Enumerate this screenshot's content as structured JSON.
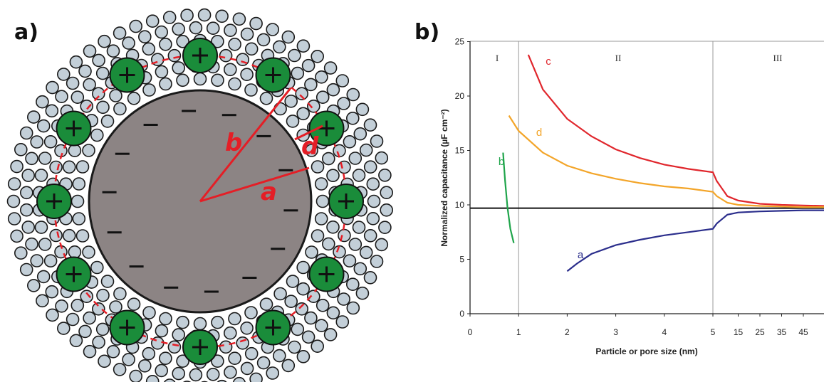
{
  "panels": {
    "a": "a)",
    "b": "b)"
  },
  "diagram": {
    "dimension_labels": {
      "a": "a",
      "b": "b",
      "d": "d"
    },
    "colors": {
      "core": "#8c8484",
      "cation": "#1a8c3a",
      "solvent": "#c3cfd8",
      "dimension": "#e41e26"
    }
  },
  "chart_data": {
    "type": "line",
    "xlabel": "Particle or pore size (nm)",
    "ylabel": "Normalized capacitance (µF cm⁻²)",
    "x_ticks": [
      "0",
      "1",
      "2",
      "3",
      "4",
      "5",
      "15",
      "25",
      "35",
      "45"
    ],
    "y_ticks": [
      "0",
      "5",
      "10",
      "15",
      "20",
      "25"
    ],
    "ylim": [
      0,
      25
    ],
    "x_scale": "piecewise: linear 0–5 nm, then compressed 5–45+ nm",
    "regions": [
      "I",
      "II",
      "III"
    ],
    "region_boundaries_nm": [
      1,
      5
    ],
    "reference_line_y": 9.7,
    "series": [
      {
        "name": "c",
        "color": "#e0262c",
        "points": [
          [
            1.2,
            23.8
          ],
          [
            1.5,
            20.6
          ],
          [
            2,
            17.9
          ],
          [
            2.5,
            16.3
          ],
          [
            3,
            15.1
          ],
          [
            3.5,
            14.3
          ],
          [
            4,
            13.7
          ],
          [
            4.5,
            13.3
          ],
          [
            5,
            13.0
          ],
          [
            5.1,
            12.2
          ],
          [
            10,
            10.8
          ],
          [
            15,
            10.4
          ],
          [
            25,
            10.1
          ],
          [
            35,
            10.0
          ],
          [
            45,
            9.95
          ],
          [
            55,
            9.9
          ]
        ]
      },
      {
        "name": "d",
        "color": "#f3a529",
        "points": [
          [
            0.8,
            18.2
          ],
          [
            1,
            16.8
          ],
          [
            1.5,
            14.8
          ],
          [
            2,
            13.6
          ],
          [
            2.5,
            12.9
          ],
          [
            3,
            12.4
          ],
          [
            3.5,
            12.0
          ],
          [
            4,
            11.7
          ],
          [
            4.5,
            11.5
          ],
          [
            5,
            11.2
          ],
          [
            5.2,
            10.8
          ],
          [
            10,
            10.2
          ],
          [
            15,
            10.0
          ],
          [
            25,
            9.9
          ],
          [
            35,
            9.85
          ],
          [
            45,
            9.8
          ],
          [
            55,
            9.8
          ]
        ]
      },
      {
        "name": "b",
        "color": "#1ea44a",
        "points": [
          [
            0.68,
            14.8
          ],
          [
            0.72,
            12.3
          ],
          [
            0.77,
            9.8
          ],
          [
            0.83,
            7.8
          ],
          [
            0.9,
            6.5
          ]
        ]
      },
      {
        "name": "a",
        "color": "#2b2e8c",
        "points": [
          [
            2,
            3.9
          ],
          [
            2.2,
            4.6
          ],
          [
            2.5,
            5.5
          ],
          [
            3,
            6.3
          ],
          [
            3.5,
            6.8
          ],
          [
            4,
            7.2
          ],
          [
            4.5,
            7.5
          ],
          [
            5,
            7.8
          ],
          [
            5.2,
            8.3
          ],
          [
            10,
            9.1
          ],
          [
            15,
            9.3
          ],
          [
            25,
            9.4
          ],
          [
            35,
            9.45
          ],
          [
            45,
            9.5
          ],
          [
            55,
            9.5
          ]
        ]
      }
    ]
  }
}
